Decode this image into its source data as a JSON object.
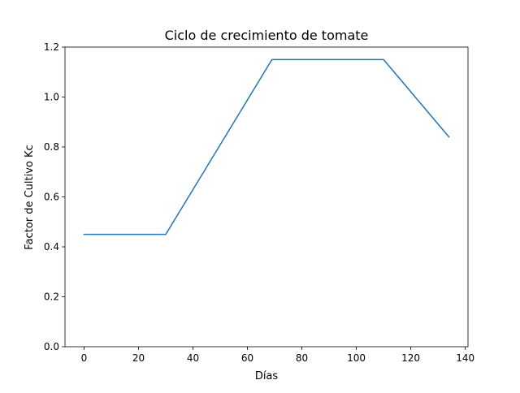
{
  "chart_data": {
    "type": "line",
    "title": "Ciclo de crecimiento de tomate",
    "xlabel": "Días",
    "ylabel": "Factor de Cultivo Kc",
    "xlim": [
      -7,
      141
    ],
    "ylim": [
      0.0,
      1.2
    ],
    "xticks": [
      0,
      20,
      40,
      60,
      80,
      100,
      120,
      140
    ],
    "yticks": [
      0.0,
      0.2,
      0.4,
      0.6,
      0.8,
      1.0,
      1.2
    ],
    "xtick_labels": [
      "0",
      "20",
      "40",
      "60",
      "80",
      "100",
      "120",
      "140"
    ],
    "ytick_labels": [
      "0.0",
      "0.2",
      "0.4",
      "0.6",
      "0.8",
      "1.0",
      "1.2"
    ],
    "grid": false,
    "series": [
      {
        "color": "#1f77b4",
        "x": [
          0,
          30,
          69,
          110,
          134
        ],
        "y": [
          0.45,
          0.45,
          1.15,
          1.15,
          0.84
        ]
      }
    ]
  }
}
